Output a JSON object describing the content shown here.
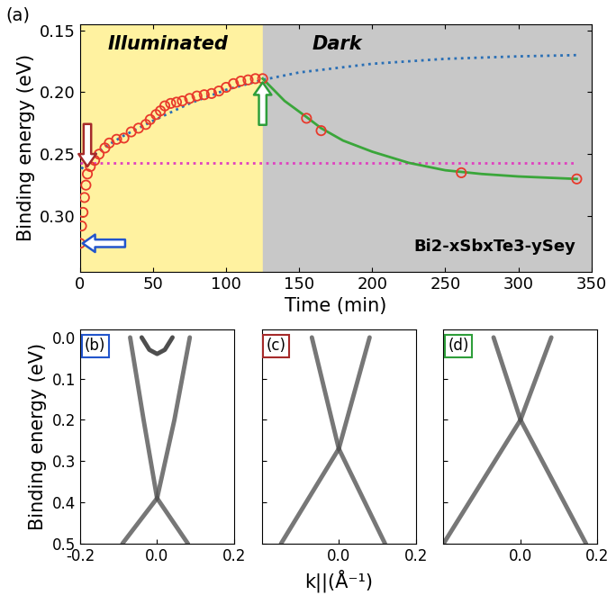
{
  "chart_data": [
    {
      "type": "line",
      "panel_label": "(a)",
      "x_label": "Time (min)",
      "y_label": "Binding energy (eV)",
      "xlim": [
        0,
        350
      ],
      "xticks": [
        0,
        50,
        100,
        150,
        200,
        250,
        300,
        350
      ],
      "ylim": [
        0.345,
        0.145
      ],
      "yticks": [
        {
          "value": 0.15,
          "label": "0.15"
        },
        {
          "value": 0.2,
          "label": "0.20"
        },
        {
          "value": 0.25,
          "label": "0.25"
        },
        {
          "value": 0.3,
          "label": "0.30"
        }
      ],
      "regions": [
        {
          "x": [
            0,
            125
          ],
          "color": "#fff2a0",
          "label": "Illuminated"
        },
        {
          "x": [
            125,
            350
          ],
          "color": "#c8c8c8",
          "label": "Dark"
        }
      ],
      "note": "Bi2-xSbxTe3-ySey",
      "series": [
        {
          "type": "line",
          "color": "#2a6fb5",
          "line_style": "dotted",
          "x": [
            1,
            5,
            10,
            20,
            30,
            50,
            75,
            100,
            125,
            150,
            200,
            250,
            300,
            340
          ],
          "values": [
            0.262,
            0.255,
            0.25,
            0.242,
            0.235,
            0.223,
            0.209,
            0.198,
            0.19,
            0.184,
            0.177,
            0.173,
            0.171,
            0.17
          ]
        },
        {
          "type": "line",
          "color": "#e040c0",
          "line_style": "dotted",
          "x": [
            0,
            340
          ],
          "values": [
            0.257,
            0.257
          ]
        },
        {
          "type": "line",
          "color": "#3aa63a",
          "line_style": "solid",
          "x": [
            125,
            140,
            155,
            165,
            180,
            200,
            225,
            250,
            275,
            300,
            340
          ],
          "values": [
            0.189,
            0.207,
            0.22,
            0.229,
            0.239,
            0.248,
            0.257,
            0.263,
            0.266,
            0.268,
            0.27
          ]
        },
        {
          "type": "scatter",
          "color": "#e8392b",
          "marker": "o",
          "x": [
            0,
            1,
            2,
            3,
            4,
            5,
            7,
            10,
            13,
            17,
            20,
            25,
            30,
            35,
            40,
            45,
            48,
            52,
            55,
            58,
            62,
            66,
            70,
            75,
            80,
            85,
            90,
            95,
            100,
            105,
            110,
            115,
            120,
            125,
            155,
            165,
            261,
            340
          ],
          "values": [
            0.322,
            0.308,
            0.297,
            0.285,
            0.275,
            0.266,
            0.26,
            0.255,
            0.25,
            0.245,
            0.241,
            0.238,
            0.237,
            0.232,
            0.229,
            0.226,
            0.222,
            0.218,
            0.215,
            0.211,
            0.209,
            0.208,
            0.207,
            0.205,
            0.203,
            0.202,
            0.201,
            0.199,
            0.196,
            0.193,
            0.191,
            0.19,
            0.189,
            0.189,
            0.221,
            0.231,
            0.265,
            0.27
          ]
        }
      ],
      "arrows": [
        {
          "x": 0,
          "y": 0.322,
          "direction": "left",
          "color": "#2255cc"
        },
        {
          "x": 5,
          "y": 0.262,
          "direction": "down",
          "color": "#a52a2a"
        },
        {
          "x": 125,
          "y": 0.19,
          "direction": "up",
          "color": "#2e9e3a"
        }
      ]
    },
    {
      "type": "line",
      "panel_label": "(b)",
      "y_label": "Binding energy (eV)",
      "xlim": [
        -0.2,
        0.2
      ],
      "xticks": [
        {
          "value": -0.2,
          "label": "-0.2"
        },
        {
          "value": 0.0,
          "label": "0.0"
        },
        {
          "value": 0.2,
          "label": "0.2"
        }
      ],
      "ylim": [
        0.5,
        -0.02
      ],
      "yticks": [
        {
          "value": 0.0,
          "label": "0.0"
        },
        {
          "value": 0.1,
          "label": "0.1"
        },
        {
          "value": 0.2,
          "label": "0.2"
        },
        {
          "value": 0.3,
          "label": "0.3"
        },
        {
          "value": 0.4,
          "label": "0.4"
        },
        {
          "value": 0.5,
          "label": "0.5"
        }
      ],
      "series": [
        {
          "color": "#555555",
          "x": [
            -0.07,
            -0.035,
            0.0
          ],
          "values": [
            0.0,
            0.2,
            0.39
          ]
        },
        {
          "color": "#555555",
          "x": [
            0.085,
            0.045,
            0.0
          ],
          "values": [
            0.0,
            0.2,
            0.39
          ]
        },
        {
          "color": "#555555",
          "x": [
            0.0,
            -0.09
          ],
          "values": [
            0.39,
            0.5
          ]
        },
        {
          "color": "#555555",
          "x": [
            0.0,
            0.08
          ],
          "values": [
            0.39,
            0.5
          ]
        },
        {
          "color": "#222222",
          "x": [
            -0.04,
            -0.02,
            0.0,
            0.02,
            0.04
          ],
          "values": [
            0.0,
            0.03,
            0.04,
            0.03,
            0.0
          ]
        }
      ]
    },
    {
      "type": "line",
      "panel_label": "(c)",
      "x_label": "k||(Å⁻¹)",
      "tick_labels": "x",
      "xlim": [
        -0.2,
        0.2
      ],
      "xticks": [
        {
          "value": 0.0,
          "label": "0.0"
        },
        {
          "value": 0.2,
          "label": "0.2"
        }
      ],
      "ylim": [
        0.5,
        -0.02
      ],
      "yticks": [
        0.0,
        0.1,
        0.2,
        0.3,
        0.4,
        0.5
      ],
      "series": [
        {
          "color": "#555555",
          "x": [
            -0.07,
            0.0
          ],
          "values": [
            0.0,
            0.27
          ]
        },
        {
          "color": "#555555",
          "x": [
            0.08,
            0.0
          ],
          "values": [
            0.0,
            0.27
          ]
        },
        {
          "color": "#555555",
          "x": [
            0.0,
            -0.15
          ],
          "values": [
            0.27,
            0.5
          ]
        },
        {
          "color": "#555555",
          "x": [
            0.0,
            0.12
          ],
          "values": [
            0.27,
            0.5
          ]
        }
      ]
    },
    {
      "type": "line",
      "panel_label": "(d)",
      "tick_labels": "x",
      "xlim": [
        -0.2,
        0.2
      ],
      "xticks": [
        {
          "value": 0.0,
          "label": "0.0"
        },
        {
          "value": 0.2,
          "label": "0.2"
        }
      ],
      "ylim": [
        0.5,
        -0.02
      ],
      "yticks": [
        0.0,
        0.1,
        0.2,
        0.3,
        0.4,
        0.5
      ],
      "series": [
        {
          "color": "#555555",
          "x": [
            -0.07,
            0.0
          ],
          "values": [
            0.0,
            0.2
          ]
        },
        {
          "color": "#555555",
          "x": [
            0.08,
            0.0
          ],
          "values": [
            0.0,
            0.2
          ]
        },
        {
          "color": "#555555",
          "x": [
            0.0,
            -0.2
          ],
          "values": [
            0.2,
            0.5
          ]
        },
        {
          "color": "#555555",
          "x": [
            0.0,
            0.17
          ],
          "values": [
            0.2,
            0.5
          ]
        }
      ]
    }
  ]
}
